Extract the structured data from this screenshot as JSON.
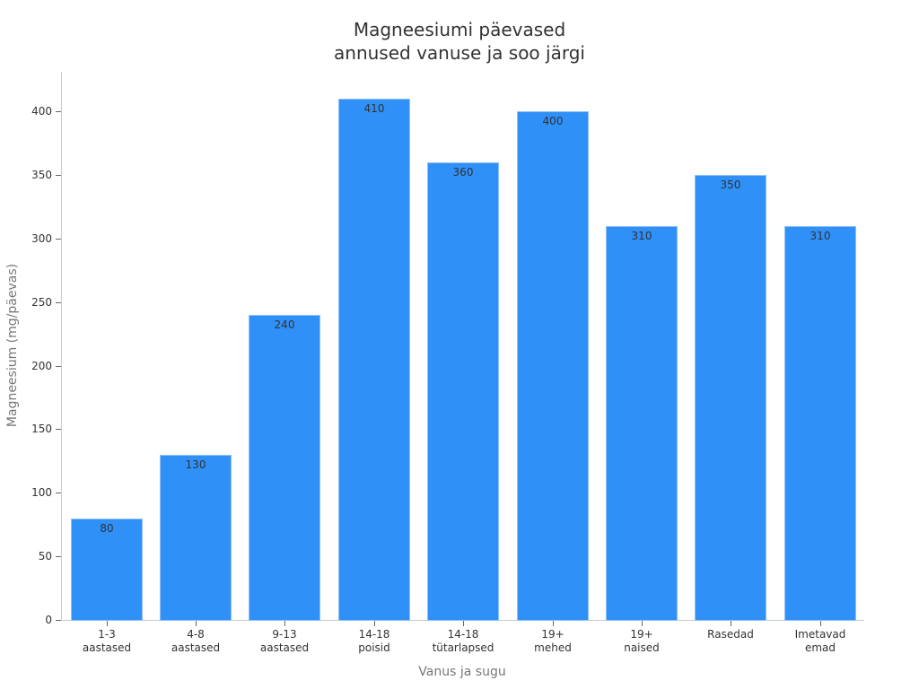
{
  "chart_data": {
    "type": "bar",
    "title": "Magneesiumi päevased\nannused vanuse ja soo järgi",
    "title_lines": [
      "Magneesiumi päevased",
      "annused vanuse ja soo järgi"
    ],
    "xlabel": "Vanus ja sugu",
    "ylabel": "Magneesium (mg/päevas)",
    "categories": [
      "1-3\naastased",
      "4-8\naastased",
      "9-13\naastased",
      "14-18\npoisid",
      "14-18\ntütarlapsed",
      "19+\nmehed",
      "19+\nnaised",
      "Rasedad",
      "Imetavad\nemad"
    ],
    "values": [
      80,
      130,
      240,
      410,
      360,
      400,
      310,
      350,
      310
    ],
    "value_labels": [
      "80",
      "130",
      "240",
      "410",
      "360",
      "400",
      "310",
      "350",
      "310"
    ],
    "yticks": [
      "0",
      "50",
      "100",
      "150",
      "200",
      "250",
      "300",
      "350",
      "400"
    ],
    "ylim": [
      0,
      430
    ],
    "grid": false,
    "legend": null,
    "bar_color": "#2f90f7"
  }
}
